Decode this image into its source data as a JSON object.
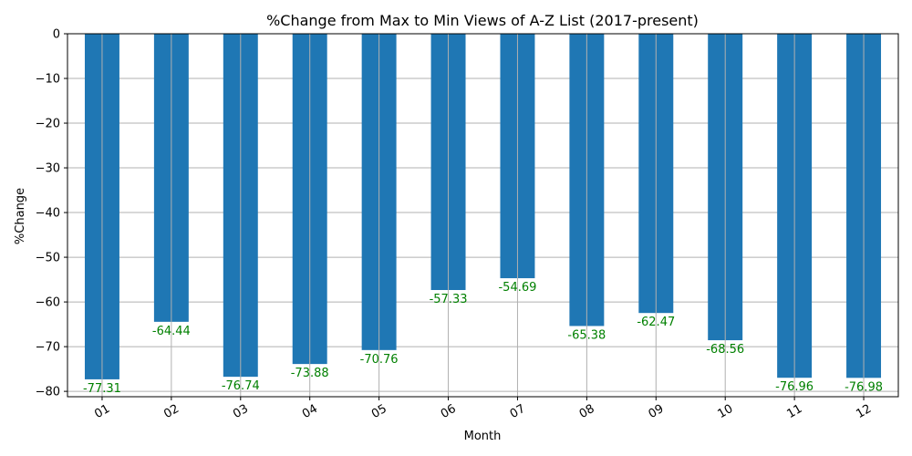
{
  "chart_data": {
    "type": "bar",
    "title": "%Change from Max to Min Views of A-Z List (2017-present)",
    "xlabel": "Month",
    "ylabel": "%Change",
    "categories": [
      "01",
      "02",
      "03",
      "04",
      "05",
      "06",
      "07",
      "08",
      "09",
      "10",
      "11",
      "12"
    ],
    "values": [
      -77.31,
      -64.44,
      -76.74,
      -73.88,
      -70.76,
      -57.33,
      -54.69,
      -65.38,
      -62.47,
      -68.56,
      -76.96,
      -76.98
    ],
    "data_labels": [
      "-77.31",
      "-64.44",
      "-76.74",
      "-73.88",
      "-70.76",
      "-57.33",
      "-54.69",
      "-65.38",
      "-62.47",
      "-68.56",
      "-76.96",
      "-76.98"
    ],
    "yticks": [
      0,
      -10,
      -20,
      -30,
      -40,
      -50,
      -60,
      -70,
      -80
    ],
    "ytick_labels": [
      "0",
      "−10",
      "−20",
      "−30",
      "−40",
      "−50",
      "−60",
      "−70",
      "−80"
    ],
    "ylim": [
      -81.2,
      0
    ],
    "grid": true,
    "bar_color": "#1f77b4",
    "label_color": "#008000"
  }
}
